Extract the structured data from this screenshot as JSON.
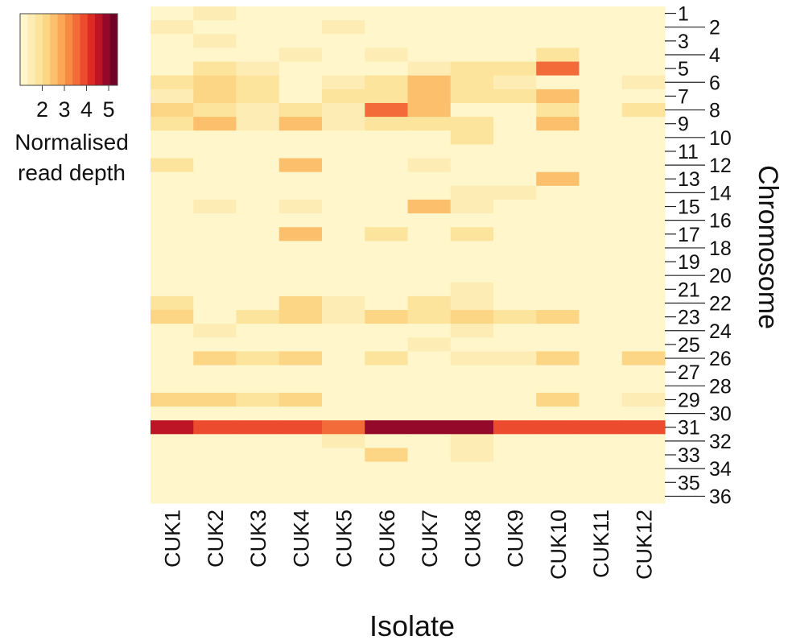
{
  "chart_data": {
    "type": "heatmap",
    "x": [
      "CUK1",
      "CUK2",
      "CUK3",
      "CUK4",
      "CUK5",
      "CUK6",
      "CUK7",
      "CUK8",
      "CUK9",
      "CUK10",
      "CUK11",
      "CUK12"
    ],
    "y": [
      "1",
      "2",
      "3",
      "4",
      "5",
      "6",
      "7",
      "8",
      "9",
      "10",
      "11",
      "12",
      "13",
      "14",
      "15",
      "16",
      "17",
      "18",
      "19",
      "20",
      "21",
      "22",
      "23",
      "24",
      "25",
      "26",
      "27",
      "28",
      "29",
      "30",
      "31",
      "32",
      "33",
      "34",
      "35",
      "36"
    ],
    "values": [
      [
        1.0,
        1.6,
        1.0,
        1.3,
        1.0,
        1.0,
        1.3,
        1.0,
        1.0,
        1.0,
        1.0,
        1.0
      ],
      [
        1.4,
        1.0,
        1.0,
        1.3,
        1.4,
        1.0,
        1.0,
        1.0,
        1.0,
        1.0,
        1.0,
        1.3
      ],
      [
        1.0,
        1.4,
        1.0,
        1.0,
        1.0,
        1.0,
        1.0,
        1.2,
        1.0,
        1.0,
        1.0,
        1.0
      ],
      [
        1.0,
        1.0,
        1.0,
        1.6,
        1.0,
        1.6,
        1.3,
        1.0,
        1.0,
        1.7,
        1.0,
        1.0
      ],
      [
        1.0,
        1.9,
        1.6,
        1.0,
        1.3,
        1.0,
        1.5,
        1.7,
        1.7,
        3.6,
        1.2,
        1.0
      ],
      [
        1.8,
        2.3,
        1.9,
        1.0,
        1.6,
        1.9,
        2.5,
        1.7,
        1.5,
        1.0,
        1.3,
        1.6
      ],
      [
        1.6,
        2.3,
        1.7,
        1.0,
        1.8,
        1.9,
        2.5,
        1.9,
        1.8,
        2.4,
        1.3,
        1.3
      ],
      [
        2.1,
        1.9,
        1.5,
        1.8,
        1.4,
        3.6,
        2.5,
        1.0,
        1.0,
        1.9,
        1.3,
        1.8
      ],
      [
        2.0,
        2.5,
        1.6,
        2.4,
        1.5,
        1.7,
        1.8,
        1.7,
        1.0,
        2.4,
        1.0,
        1.0
      ],
      [
        1.0,
        1.0,
        1.0,
        1.0,
        1.0,
        1.0,
        1.0,
        1.7,
        1.0,
        1.0,
        1.0,
        1.0
      ],
      [
        1.3,
        1.3,
        1.3,
        1.0,
        1.3,
        1.0,
        1.3,
        1.0,
        1.3,
        1.3,
        1.3,
        1.3
      ],
      [
        1.7,
        1.0,
        1.3,
        2.4,
        1.0,
        1.0,
        1.6,
        1.0,
        1.3,
        1.3,
        1.3,
        1.0
      ],
      [
        1.0,
        1.0,
        1.0,
        1.0,
        1.0,
        1.0,
        1.0,
        1.0,
        1.0,
        2.4,
        1.0,
        1.3
      ],
      [
        1.3,
        1.0,
        1.0,
        1.0,
        1.3,
        1.0,
        1.0,
        1.6,
        1.6,
        1.0,
        1.0,
        1.0
      ],
      [
        1.3,
        1.6,
        1.3,
        1.6,
        1.3,
        1.0,
        2.4,
        1.6,
        1.3,
        1.0,
        1.0,
        1.0
      ],
      [
        1.0,
        1.0,
        1.0,
        1.0,
        1.0,
        1.0,
        1.0,
        1.0,
        1.0,
        1.0,
        1.0,
        1.0
      ],
      [
        1.0,
        1.0,
        1.0,
        2.4,
        1.0,
        1.7,
        1.0,
        1.7,
        1.0,
        1.0,
        1.3,
        1.0
      ],
      [
        1.0,
        1.3,
        1.0,
        1.0,
        1.0,
        1.0,
        1.3,
        1.0,
        1.0,
        1.0,
        1.0,
        1.0
      ],
      [
        1.0,
        1.0,
        1.0,
        1.0,
        1.0,
        1.0,
        1.0,
        1.0,
        1.0,
        1.0,
        1.0,
        1.0
      ],
      [
        1.0,
        1.0,
        1.3,
        1.3,
        1.0,
        1.3,
        1.0,
        1.0,
        1.3,
        1.0,
        1.3,
        1.3
      ],
      [
        1.0,
        1.0,
        1.0,
        1.0,
        1.0,
        1.0,
        1.0,
        1.6,
        1.0,
        1.0,
        1.3,
        1.0
      ],
      [
        1.7,
        1.0,
        1.3,
        2.3,
        1.6,
        1.0,
        1.7,
        1.5,
        1.0,
        1.0,
        1.0,
        1.3
      ],
      [
        2.2,
        1.3,
        1.9,
        2.3,
        1.6,
        2.2,
        1.8,
        2.2,
        1.7,
        2.1,
        1.3,
        1.3
      ],
      [
        1.3,
        1.6,
        1.0,
        1.0,
        1.0,
        1.0,
        1.0,
        1.6,
        1.0,
        1.0,
        1.0,
        1.0
      ],
      [
        1.0,
        1.0,
        1.0,
        1.0,
        1.0,
        1.0,
        1.6,
        1.0,
        1.0,
        1.0,
        1.0,
        1.0
      ],
      [
        1.3,
        2.2,
        1.7,
        2.2,
        1.3,
        1.7,
        1.0,
        1.6,
        1.6,
        2.2,
        1.3,
        2.2
      ],
      [
        1.3,
        1.0,
        1.0,
        1.0,
        1.0,
        1.0,
        1.0,
        1.0,
        1.0,
        1.0,
        1.0,
        1.0
      ],
      [
        1.0,
        1.0,
        1.0,
        1.0,
        1.0,
        1.0,
        1.0,
        1.0,
        1.0,
        1.0,
        1.0,
        1.0
      ],
      [
        2.1,
        2.1,
        1.8,
        2.2,
        1.0,
        1.0,
        1.3,
        1.3,
        1.3,
        2.1,
        1.3,
        1.6
      ],
      [
        1.0,
        1.0,
        1.0,
        1.0,
        1.0,
        1.0,
        1.0,
        1.0,
        1.0,
        1.3,
        1.0,
        1.0
      ],
      [
        4.6,
        3.8,
        3.8,
        3.8,
        3.5,
        5.0,
        5.0,
        5.0,
        3.8,
        3.8,
        3.8,
        3.8
      ],
      [
        1.0,
        1.0,
        1.0,
        1.0,
        1.4,
        1.0,
        1.0,
        1.6,
        1.0,
        1.0,
        1.0,
        1.0
      ],
      [
        1.0,
        1.3,
        1.3,
        1.0,
        1.3,
        2.2,
        1.0,
        1.6,
        1.3,
        1.3,
        1.0,
        1.0
      ],
      [
        1.0,
        1.0,
        1.0,
        1.0,
        1.0,
        1.0,
        1.0,
        1.0,
        1.0,
        1.3,
        1.0,
        1.0
      ],
      [
        1.0,
        1.0,
        1.0,
        1.3,
        1.0,
        1.0,
        1.3,
        1.0,
        1.0,
        1.3,
        1.0,
        1.0
      ],
      [
        1.0,
        1.0,
        1.0,
        1.0,
        1.0,
        1.0,
        1.0,
        1.0,
        1.0,
        1.0,
        1.0,
        1.0
      ]
    ],
    "xlabel": "Isolate",
    "ylabel": "Chromosome",
    "colorbar": {
      "title_lines": [
        "Normalised",
        "read depth"
      ],
      "ticks": [
        2,
        3,
        4,
        5
      ],
      "range": [
        1,
        5.4
      ],
      "colors": [
        "#fff6cc",
        "#fdedb4",
        "#fde49c",
        "#fdd685",
        "#fcc06c",
        "#fca756",
        "#f88a43",
        "#f36b38",
        "#ec4b2d",
        "#dd2a24",
        "#bd1525",
        "#94082a",
        "#6e0326"
      ]
    },
    "grid": false,
    "legend_position": "top-left"
  }
}
